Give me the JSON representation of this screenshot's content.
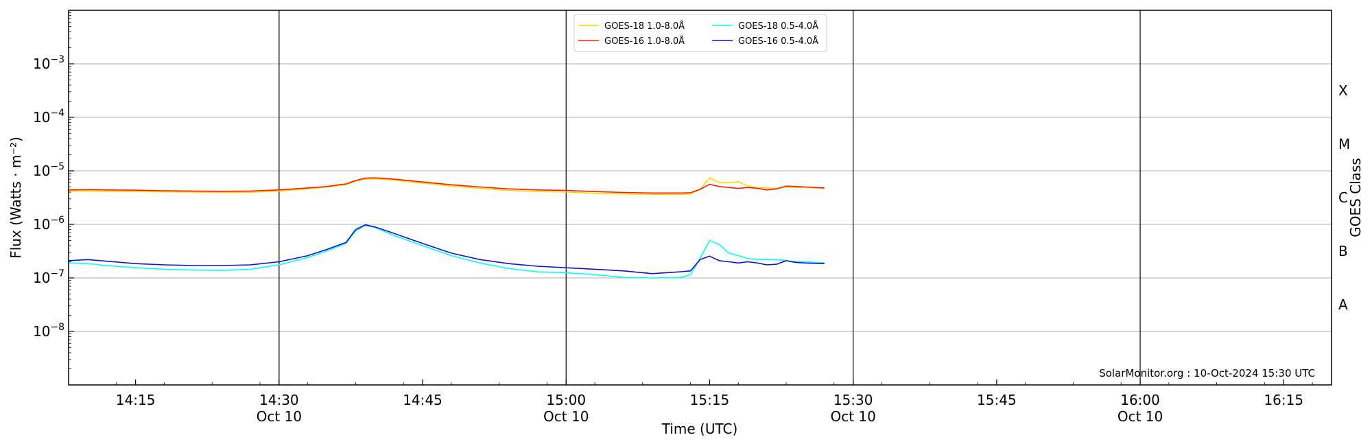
{
  "chart_data": {
    "type": "line",
    "title": "",
    "xlabel": "Time (UTC)",
    "ylabel": "Flux (Watts · m⁻²)",
    "ylabel_right": "GOES Class",
    "yscale": "log",
    "ylim": [
      1e-09,
      0.01
    ],
    "xlim": [
      "14:08",
      "16:20"
    ],
    "x_ticks": [
      {
        "t": "14:15",
        "label": "14:15",
        "sub": ""
      },
      {
        "t": "14:30",
        "label": "14:30",
        "sub": "Oct 10"
      },
      {
        "t": "14:45",
        "label": "14:45",
        "sub": ""
      },
      {
        "t": "15:00",
        "label": "15:00",
        "sub": "Oct 10"
      },
      {
        "t": "15:15",
        "label": "15:15",
        "sub": ""
      },
      {
        "t": "15:30",
        "label": "15:30",
        "sub": "Oct 10"
      },
      {
        "t": "15:45",
        "label": "15:45",
        "sub": ""
      },
      {
        "t": "16:00",
        "label": "16:00",
        "sub": "Oct 10"
      },
      {
        "t": "16:15",
        "label": "16:15",
        "sub": ""
      }
    ],
    "y_ticks": [
      {
        "value": 0.001,
        "mantissa": "10",
        "exp": "−3"
      },
      {
        "value": 0.0001,
        "mantissa": "10",
        "exp": "−4"
      },
      {
        "value": 1e-05,
        "mantissa": "10",
        "exp": "−5"
      },
      {
        "value": 1e-06,
        "mantissa": "10",
        "exp": "−6"
      },
      {
        "value": 1e-07,
        "mantissa": "10",
        "exp": "−7"
      },
      {
        "value": 1e-08,
        "mantissa": "10",
        "exp": "−8"
      }
    ],
    "goes_classes": [
      {
        "label": "X",
        "value": 0.000316
      },
      {
        "label": "M",
        "value": 3.16e-05
      },
      {
        "label": "C",
        "value": 3.16e-06
      },
      {
        "label": "B",
        "value": 3.16e-07
      },
      {
        "label": "A",
        "value": 3.16e-08
      }
    ],
    "vertical_lines": [
      "14:30",
      "15:00",
      "15:30",
      "16:00"
    ],
    "grid": "horizontal",
    "legend_position": "top-center",
    "credit": "SolarMonitor.org : 10-Oct-2024 15:30 UTC",
    "series": [
      {
        "name": "GOES-18 1.0-8.0Å",
        "color": "#ffd700",
        "x": [
          "14:08",
          "14:10",
          "14:12",
          "14:15",
          "14:18",
          "14:21",
          "14:24",
          "14:27",
          "14:30",
          "14:33",
          "14:35",
          "14:37",
          "14:38",
          "14:39",
          "14:40",
          "14:42",
          "14:45",
          "14:48",
          "14:51",
          "14:54",
          "14:57",
          "15:00",
          "15:03",
          "15:06",
          "15:09",
          "15:12",
          "15:13",
          "15:14",
          "15:15",
          "15:16",
          "15:17",
          "15:18",
          "15:19",
          "15:20",
          "15:21",
          "15:22",
          "15:23",
          "15:24",
          "15:25",
          "15:27"
        ],
        "y": [
          4.2e-06,
          4.2e-06,
          4.15e-06,
          4.1e-06,
          4.05e-06,
          4e-06,
          3.95e-06,
          3.98e-06,
          4.2e-06,
          4.6e-06,
          5e-06,
          5.5e-06,
          6.4e-06,
          7e-06,
          7.1e-06,
          6.7e-06,
          5.9e-06,
          5.2e-06,
          4.7e-06,
          4.3e-06,
          4.1e-06,
          4e-06,
          3.8e-06,
          3.7e-06,
          3.6e-06,
          3.6e-06,
          3.7e-06,
          4.5e-06,
          7.4e-06,
          6e-06,
          6e-06,
          6.3e-06,
          5.2e-06,
          4.9e-06,
          4.8e-06,
          4.7e-06,
          5e-06,
          4.9e-06,
          4.9e-06,
          4.7e-06
        ]
      },
      {
        "name": "GOES-16 1.0-8.0Å",
        "color": "#ff1a00",
        "x": [
          "14:08",
          "14:10",
          "14:12",
          "14:15",
          "14:18",
          "14:21",
          "14:24",
          "14:27",
          "14:30",
          "14:33",
          "14:35",
          "14:37",
          "14:38",
          "14:39",
          "14:40",
          "14:42",
          "14:45",
          "14:48",
          "14:51",
          "14:54",
          "14:57",
          "15:00",
          "15:03",
          "15:06",
          "15:09",
          "15:12",
          "15:13",
          "15:14",
          "15:15",
          "15:16",
          "15:17",
          "15:18",
          "15:19",
          "15:20",
          "15:21",
          "15:22",
          "15:23",
          "15:24",
          "15:25",
          "15:27"
        ],
        "y": [
          4.4e-06,
          4.45e-06,
          4.4e-06,
          4.35e-06,
          4.25e-06,
          4.2e-06,
          4.15e-06,
          4.2e-06,
          4.4e-06,
          4.8e-06,
          5.1e-06,
          5.7e-06,
          6.6e-06,
          7.3e-06,
          7.4e-06,
          7e-06,
          6.2e-06,
          5.5e-06,
          5e-06,
          4.6e-06,
          4.4e-06,
          4.3e-06,
          4.1e-06,
          3.95e-06,
          3.85e-06,
          3.85e-06,
          3.9e-06,
          4.5e-06,
          5.6e-06,
          5.1e-06,
          4.9e-06,
          4.7e-06,
          4.9e-06,
          4.7e-06,
          4.4e-06,
          4.6e-06,
          5.2e-06,
          5.1e-06,
          5e-06,
          4.8e-06
        ]
      },
      {
        "name": "GOES-18 0.5-4.0Å",
        "color": "#00ffff",
        "x": [
          "14:08",
          "14:10",
          "14:12",
          "14:15",
          "14:18",
          "14:21",
          "14:24",
          "14:27",
          "14:30",
          "14:33",
          "14:35",
          "14:37",
          "14:38",
          "14:39",
          "14:40",
          "14:42",
          "14:45",
          "14:48",
          "14:51",
          "14:54",
          "14:57",
          "15:00",
          "15:03",
          "15:06",
          "15:09",
          "15:12",
          "15:13",
          "15:14",
          "15:15",
          "15:16",
          "15:17",
          "15:18",
          "15:19",
          "15:20",
          "15:21",
          "15:22",
          "15:23",
          "15:24",
          "15:25",
          "15:27"
        ],
        "y": [
          1.9e-07,
          1.85e-07,
          1.7e-07,
          1.55e-07,
          1.45e-07,
          1.4e-07,
          1.38e-07,
          1.45e-07,
          1.75e-07,
          2.4e-07,
          3.2e-07,
          4.4e-07,
          7.5e-07,
          9.6e-07,
          8.8e-07,
          6.2e-07,
          4e-07,
          2.6e-07,
          1.9e-07,
          1.5e-07,
          1.3e-07,
          1.25e-07,
          1.15e-07,
          1.02e-07,
          1e-07,
          1.02e-07,
          1.15e-07,
          2.3e-07,
          5e-07,
          4.2e-07,
          2.9e-07,
          2.6e-07,
          2.3e-07,
          2.2e-07,
          2.2e-07,
          2.2e-07,
          2.1e-07,
          2e-07,
          2e-07,
          1.9e-07
        ]
      },
      {
        "name": "GOES-16 0.5-4.0Å",
        "color": "#1010d0",
        "x": [
          "14:08",
          "14:10",
          "14:12",
          "14:15",
          "14:18",
          "14:21",
          "14:24",
          "14:27",
          "14:30",
          "14:33",
          "14:35",
          "14:37",
          "14:38",
          "14:39",
          "14:40",
          "14:42",
          "14:45",
          "14:48",
          "14:51",
          "14:54",
          "14:57",
          "15:00",
          "15:03",
          "15:06",
          "15:09",
          "15:12",
          "15:13",
          "15:14",
          "15:15",
          "15:16",
          "15:17",
          "15:18",
          "15:19",
          "15:20",
          "15:21",
          "15:22",
          "15:23",
          "15:24",
          "15:25",
          "15:27"
        ],
        "y": [
          2.1e-07,
          2.2e-07,
          2.05e-07,
          1.85e-07,
          1.75e-07,
          1.7e-07,
          1.7e-07,
          1.75e-07,
          2e-07,
          2.6e-07,
          3.4e-07,
          4.6e-07,
          8e-07,
          9.8e-07,
          9e-07,
          6.8e-07,
          4.4e-07,
          2.9e-07,
          2.2e-07,
          1.85e-07,
          1.65e-07,
          1.55e-07,
          1.45e-07,
          1.35e-07,
          1.2e-07,
          1.3e-07,
          1.35e-07,
          2.2e-07,
          2.55e-07,
          2.1e-07,
          2e-07,
          1.9e-07,
          2e-07,
          1.9e-07,
          1.75e-07,
          1.8e-07,
          2.1e-07,
          1.95e-07,
          1.9e-07,
          1.85e-07
        ]
      }
    ]
  }
}
